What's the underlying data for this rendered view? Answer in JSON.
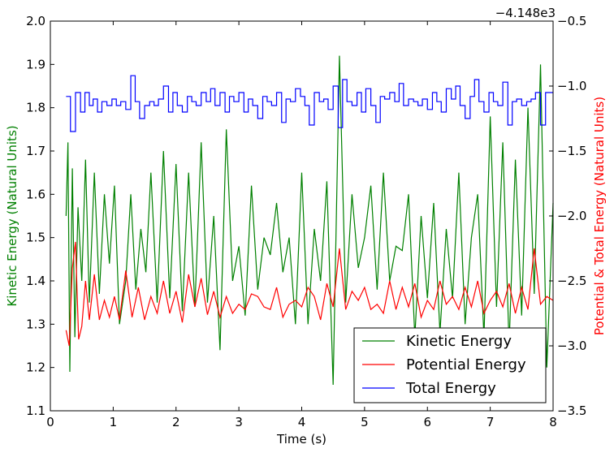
{
  "chart_data": {
    "type": "line",
    "title": "",
    "xlabel": "Time (s)",
    "ylabel_left": "Kinetic Energy (Natural Units)",
    "ylabel_right": "Potential & Total Energy (Natural Units)",
    "xlim": [
      0,
      8
    ],
    "ylim_left": [
      1.1,
      2.0
    ],
    "ylim_right": [
      -3.5,
      -0.5
    ],
    "right_axis_offset_text": "−4.148e3",
    "x_ticks": [
      "0",
      "1",
      "2",
      "3",
      "4",
      "5",
      "6",
      "7",
      "8"
    ],
    "y_left_ticks": [
      "1.1",
      "1.2",
      "1.3",
      "1.4",
      "1.5",
      "1.6",
      "1.7",
      "1.8",
      "1.9",
      "2.0"
    ],
    "y_right_ticks": [
      "−3.5",
      "−3.0",
      "−2.5",
      "−2.0",
      "−1.5",
      "−1.0",
      "−0.5"
    ],
    "grid": false,
    "legend_position": "lower-right",
    "colors": {
      "kinetic": "#008000",
      "potential": "#ff0000",
      "total": "#0000ff"
    },
    "series": [
      {
        "name": "Kinetic Energy",
        "axis": "left",
        "color": "#008000",
        "x": [
          0.25,
          0.28,
          0.31,
          0.35,
          0.39,
          0.44,
          0.5,
          0.56,
          0.62,
          0.7,
          0.78,
          0.86,
          0.94,
          1.02,
          1.1,
          1.2,
          1.28,
          1.36,
          1.44,
          1.52,
          1.6,
          1.7,
          1.8,
          1.9,
          2.0,
          2.1,
          2.2,
          2.3,
          2.4,
          2.5,
          2.6,
          2.7,
          2.8,
          2.9,
          3.0,
          3.1,
          3.2,
          3.3,
          3.4,
          3.5,
          3.6,
          3.7,
          3.8,
          3.9,
          4.0,
          4.1,
          4.2,
          4.3,
          4.4,
          4.5,
          4.6,
          4.7,
          4.8,
          4.9,
          5.0,
          5.1,
          5.2,
          5.3,
          5.4,
          5.5,
          5.6,
          5.7,
          5.8,
          5.9,
          6.0,
          6.1,
          6.2,
          6.3,
          6.4,
          6.5,
          6.6,
          6.7,
          6.8,
          6.9,
          7.0,
          7.1,
          7.2,
          7.3,
          7.4,
          7.5,
          7.6,
          7.7,
          7.8,
          7.9,
          8.0
        ],
        "values": [
          1.55,
          1.72,
          1.19,
          1.66,
          1.27,
          1.57,
          1.4,
          1.68,
          1.35,
          1.65,
          1.37,
          1.6,
          1.44,
          1.62,
          1.3,
          1.4,
          1.6,
          1.38,
          1.52,
          1.42,
          1.65,
          1.35,
          1.7,
          1.36,
          1.67,
          1.33,
          1.65,
          1.34,
          1.72,
          1.35,
          1.55,
          1.24,
          1.75,
          1.4,
          1.48,
          1.32,
          1.62,
          1.38,
          1.5,
          1.46,
          1.58,
          1.42,
          1.5,
          1.3,
          1.65,
          1.3,
          1.52,
          1.4,
          1.63,
          1.16,
          1.92,
          1.35,
          1.6,
          1.43,
          1.5,
          1.62,
          1.38,
          1.65,
          1.4,
          1.48,
          1.47,
          1.6,
          1.27,
          1.55,
          1.36,
          1.58,
          1.28,
          1.52,
          1.36,
          1.65,
          1.3,
          1.5,
          1.6,
          1.27,
          1.78,
          1.34,
          1.72,
          1.25,
          1.68,
          1.32,
          1.8,
          1.37,
          1.9,
          1.2,
          1.58
        ]
      },
      {
        "name": "Potential Energy",
        "axis": "right",
        "color": "#ff0000",
        "x": [
          0.25,
          0.3,
          0.35,
          0.4,
          0.45,
          0.5,
          0.56,
          0.62,
          0.7,
          0.78,
          0.86,
          0.94,
          1.02,
          1.1,
          1.2,
          1.3,
          1.4,
          1.5,
          1.6,
          1.7,
          1.8,
          1.9,
          2.0,
          2.1,
          2.2,
          2.3,
          2.4,
          2.5,
          2.6,
          2.7,
          2.8,
          2.9,
          3.0,
          3.1,
          3.2,
          3.3,
          3.4,
          3.5,
          3.6,
          3.7,
          3.8,
          3.9,
          4.0,
          4.1,
          4.2,
          4.3,
          4.4,
          4.5,
          4.6,
          4.7,
          4.8,
          4.9,
          5.0,
          5.1,
          5.2,
          5.3,
          5.4,
          5.5,
          5.6,
          5.7,
          5.8,
          5.9,
          6.0,
          6.1,
          6.2,
          6.3,
          6.4,
          6.5,
          6.6,
          6.7,
          6.8,
          6.9,
          7.0,
          7.1,
          7.2,
          7.3,
          7.4,
          7.5,
          7.6,
          7.7,
          7.8,
          7.9,
          8.0
        ],
        "values": [
          -2.88,
          -3.0,
          -2.4,
          -2.2,
          -2.95,
          -2.85,
          -2.5,
          -2.8,
          -2.45,
          -2.8,
          -2.65,
          -2.78,
          -2.62,
          -2.8,
          -2.42,
          -2.78,
          -2.55,
          -2.8,
          -2.62,
          -2.75,
          -2.5,
          -2.75,
          -2.58,
          -2.82,
          -2.45,
          -2.7,
          -2.48,
          -2.76,
          -2.58,
          -2.78,
          -2.62,
          -2.75,
          -2.68,
          -2.72,
          -2.6,
          -2.62,
          -2.7,
          -2.72,
          -2.55,
          -2.78,
          -2.68,
          -2.65,
          -2.7,
          -2.55,
          -2.62,
          -2.8,
          -2.52,
          -2.7,
          -2.25,
          -2.72,
          -2.58,
          -2.65,
          -2.55,
          -2.72,
          -2.68,
          -2.75,
          -2.5,
          -2.72,
          -2.55,
          -2.7,
          -2.52,
          -2.78,
          -2.65,
          -2.72,
          -2.5,
          -2.68,
          -2.62,
          -2.72,
          -2.55,
          -2.7,
          -2.5,
          -2.75,
          -2.65,
          -2.58,
          -2.7,
          -2.52,
          -2.75,
          -2.55,
          -2.72,
          -2.25,
          -2.68,
          -2.62,
          -2.65
        ]
      },
      {
        "name": "Total Energy",
        "axis": "right",
        "color": "#0000ff",
        "step": true,
        "x": [
          0.25,
          0.32,
          0.4,
          0.48,
          0.55,
          0.62,
          0.68,
          0.75,
          0.82,
          0.9,
          0.98,
          1.05,
          1.12,
          1.2,
          1.28,
          1.35,
          1.42,
          1.5,
          1.58,
          1.65,
          1.72,
          1.8,
          1.88,
          1.95,
          2.02,
          2.1,
          2.18,
          2.25,
          2.32,
          2.4,
          2.48,
          2.55,
          2.62,
          2.7,
          2.78,
          2.85,
          2.92,
          3.0,
          3.08,
          3.15,
          3.22,
          3.3,
          3.38,
          3.45,
          3.52,
          3.6,
          3.68,
          3.75,
          3.82,
          3.9,
          3.98,
          4.05,
          4.12,
          4.2,
          4.28,
          4.35,
          4.42,
          4.5,
          4.58,
          4.65,
          4.72,
          4.8,
          4.88,
          4.95,
          5.02,
          5.1,
          5.18,
          5.25,
          5.32,
          5.4,
          5.48,
          5.55,
          5.62,
          5.7,
          5.78,
          5.85,
          5.92,
          6.0,
          6.08,
          6.15,
          6.22,
          6.3,
          6.38,
          6.45,
          6.52,
          6.6,
          6.68,
          6.75,
          6.82,
          6.9,
          6.98,
          7.05,
          7.12,
          7.2,
          7.28,
          7.35,
          7.42,
          7.5,
          7.58,
          7.65,
          7.72,
          7.8,
          7.88,
          7.95
        ],
        "values": [
          -1.08,
          -1.35,
          -1.05,
          -1.2,
          -1.05,
          -1.15,
          -1.1,
          -1.2,
          -1.12,
          -1.15,
          -1.1,
          -1.15,
          -1.12,
          -1.18,
          -0.92,
          -1.12,
          -1.25,
          -1.15,
          -1.12,
          -1.15,
          -1.1,
          -1.0,
          -1.2,
          -1.05,
          -1.15,
          -1.2,
          -1.08,
          -1.12,
          -1.15,
          -1.05,
          -1.12,
          -1.02,
          -1.15,
          -1.05,
          -1.2,
          -1.08,
          -1.12,
          -1.05,
          -1.2,
          -1.1,
          -1.15,
          -1.25,
          -1.08,
          -1.12,
          -1.15,
          -1.05,
          -1.28,
          -1.1,
          -1.12,
          -1.02,
          -1.08,
          -1.15,
          -1.3,
          -1.05,
          -1.12,
          -1.1,
          -1.18,
          -1.0,
          -1.32,
          -0.95,
          -1.12,
          -1.15,
          -1.05,
          -1.2,
          -1.02,
          -1.15,
          -1.28,
          -1.08,
          -1.1,
          -1.05,
          -1.12,
          -0.98,
          -1.15,
          -1.1,
          -1.12,
          -1.15,
          -1.1,
          -1.18,
          -1.05,
          -1.12,
          -1.2,
          -1.02,
          -1.1,
          -1.0,
          -1.15,
          -1.25,
          -1.08,
          -0.95,
          -1.12,
          -1.2,
          -1.05,
          -1.12,
          -1.15,
          -0.97,
          -1.3,
          -1.12,
          -1.1,
          -1.15,
          -1.12,
          -1.1,
          -1.05,
          -1.3,
          -1.05,
          -1.05
        ]
      }
    ]
  }
}
